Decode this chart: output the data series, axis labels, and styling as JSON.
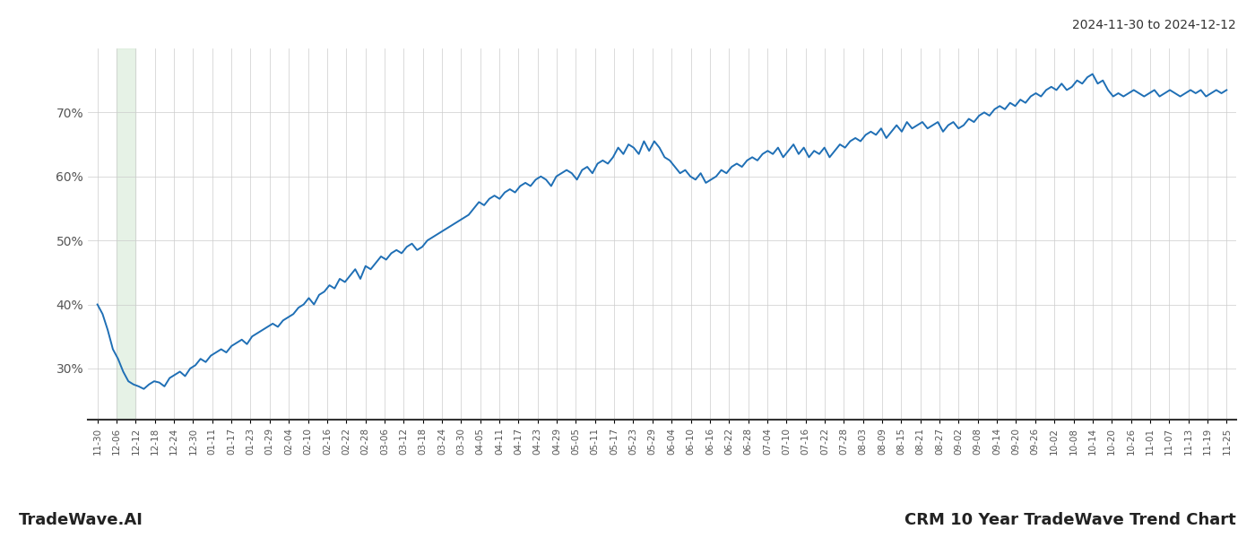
{
  "title_top_right": "2024-11-30 to 2024-12-12",
  "title_bottom_right": "CRM 10 Year TradeWave Trend Chart",
  "title_bottom_left": "TradeWave.AI",
  "line_color": "#1f6fb5",
  "line_width": 1.4,
  "highlight_color": "#d6ead6",
  "highlight_alpha": 0.6,
  "highlight_xstart_idx": 1,
  "highlight_xend_idx": 2,
  "background_color": "#ffffff",
  "grid_color": "#cccccc",
  "ylim": [
    22,
    80
  ],
  "yticks": [
    30,
    40,
    50,
    60,
    70
  ],
  "xtick_labels": [
    "11-30",
    "12-06",
    "12-12",
    "12-18",
    "12-24",
    "12-30",
    "01-11",
    "01-17",
    "01-23",
    "01-29",
    "02-04",
    "02-10",
    "02-16",
    "02-22",
    "02-28",
    "03-06",
    "03-12",
    "03-18",
    "03-24",
    "03-30",
    "04-05",
    "04-11",
    "04-17",
    "04-23",
    "04-29",
    "05-05",
    "05-11",
    "05-17",
    "05-23",
    "05-29",
    "06-04",
    "06-10",
    "06-16",
    "06-22",
    "06-28",
    "07-04",
    "07-10",
    "07-16",
    "07-22",
    "07-28",
    "08-03",
    "08-09",
    "08-15",
    "08-21",
    "08-27",
    "09-02",
    "09-08",
    "09-14",
    "09-20",
    "09-26",
    "10-02",
    "10-08",
    "10-14",
    "10-20",
    "10-26",
    "11-01",
    "11-07",
    "11-13",
    "11-19",
    "11-25"
  ],
  "y_values": [
    40.0,
    38.5,
    36.0,
    33.0,
    31.5,
    29.5,
    28.0,
    27.5,
    27.2,
    26.8,
    27.5,
    28.0,
    27.8,
    27.2,
    28.5,
    29.0,
    29.5,
    28.8,
    30.0,
    30.5,
    31.5,
    31.0,
    32.0,
    32.5,
    33.0,
    32.5,
    33.5,
    34.0,
    34.5,
    33.8,
    35.0,
    35.5,
    36.0,
    36.5,
    37.0,
    36.5,
    37.5,
    38.0,
    38.5,
    39.5,
    40.0,
    41.0,
    40.0,
    41.5,
    42.0,
    43.0,
    42.5,
    44.0,
    43.5,
    44.5,
    45.5,
    44.0,
    46.0,
    45.5,
    46.5,
    47.5,
    47.0,
    48.0,
    48.5,
    48.0,
    49.0,
    49.5,
    48.5,
    49.0,
    50.0,
    50.5,
    51.0,
    51.5,
    52.0,
    52.5,
    53.0,
    53.5,
    54.0,
    55.0,
    56.0,
    55.5,
    56.5,
    57.0,
    56.5,
    57.5,
    58.0,
    57.5,
    58.5,
    59.0,
    58.5,
    59.5,
    60.0,
    59.5,
    58.5,
    60.0,
    60.5,
    61.0,
    60.5,
    59.5,
    61.0,
    61.5,
    60.5,
    62.0,
    62.5,
    62.0,
    63.0,
    64.5,
    63.5,
    65.0,
    64.5,
    63.5,
    65.5,
    64.0,
    65.5,
    64.5,
    63.0,
    62.5,
    61.5,
    60.5,
    61.0,
    60.0,
    59.5,
    60.5,
    59.0,
    59.5,
    60.0,
    61.0,
    60.5,
    61.5,
    62.0,
    61.5,
    62.5,
    63.0,
    62.5,
    63.5,
    64.0,
    63.5,
    64.5,
    63.0,
    64.0,
    65.0,
    63.5,
    64.5,
    63.0,
    64.0,
    63.5,
    64.5,
    63.0,
    64.0,
    65.0,
    64.5,
    65.5,
    66.0,
    65.5,
    66.5,
    67.0,
    66.5,
    67.5,
    66.0,
    67.0,
    68.0,
    67.0,
    68.5,
    67.5,
    68.0,
    68.5,
    67.5,
    68.0,
    68.5,
    67.0,
    68.0,
    68.5,
    67.5,
    68.0,
    69.0,
    68.5,
    69.5,
    70.0,
    69.5,
    70.5,
    71.0,
    70.5,
    71.5,
    71.0,
    72.0,
    71.5,
    72.5,
    73.0,
    72.5,
    73.5,
    74.0,
    73.5,
    74.5,
    73.5,
    74.0,
    75.0,
    74.5,
    75.5,
    76.0,
    74.5,
    75.0,
    73.5,
    72.5,
    73.0,
    72.5,
    73.0,
    73.5,
    73.0,
    72.5,
    73.0,
    73.5,
    72.5,
    73.0,
    73.5,
    73.0,
    72.5,
    73.0,
    73.5,
    73.0,
    73.5,
    72.5,
    73.0,
    73.5,
    73.0,
    73.5
  ]
}
